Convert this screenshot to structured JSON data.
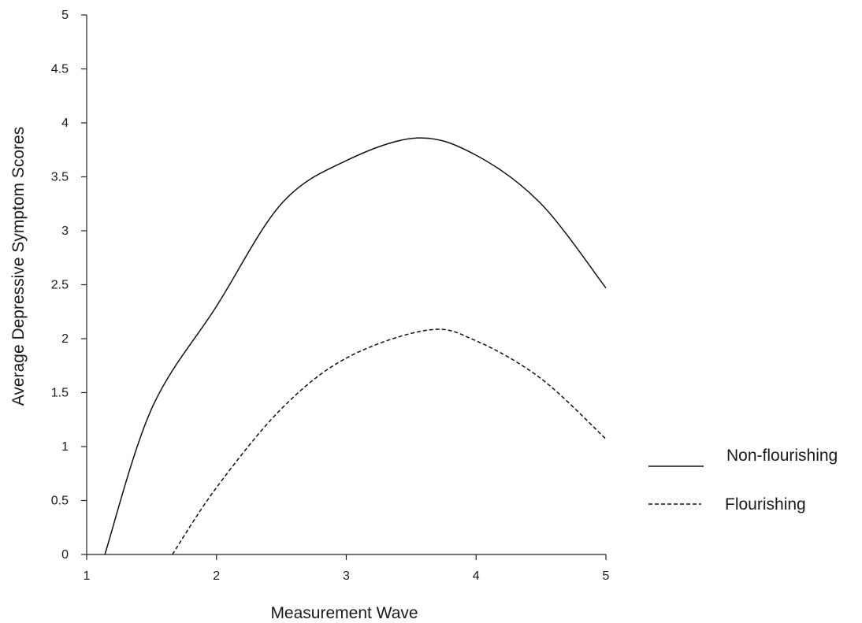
{
  "chart_data": {
    "type": "line",
    "xlabel": "Measurement Wave",
    "ylabel": "Average Depressive Symptom Scores",
    "xlim": [
      1,
      5
    ],
    "ylim": [
      0,
      5
    ],
    "x_ticks": [
      "1",
      "2",
      "3",
      "4",
      "5"
    ],
    "y_ticks": [
      "0",
      "0.5",
      "1",
      "1.5",
      "2",
      "2.5",
      "3",
      "3.5",
      "4",
      "4.5",
      "5"
    ],
    "grid": false,
    "legend_position": "right",
    "series": [
      {
        "name": "Non-flourishing",
        "line_style": "solid",
        "x": [
          1.14,
          1.5,
          2.0,
          2.5,
          3.0,
          3.55,
          4.0,
          4.5,
          5.0
        ],
        "y": [
          0.0,
          1.35,
          2.3,
          3.25,
          3.65,
          3.86,
          3.7,
          3.25,
          2.47
        ]
      },
      {
        "name": "Flourishing",
        "line_style": "dashed",
        "x": [
          1.66,
          2.0,
          2.5,
          3.0,
          3.63,
          4.0,
          4.5,
          5.0
        ],
        "y": [
          0.0,
          0.62,
          1.35,
          1.82,
          2.08,
          1.98,
          1.63,
          1.07
        ]
      }
    ]
  }
}
